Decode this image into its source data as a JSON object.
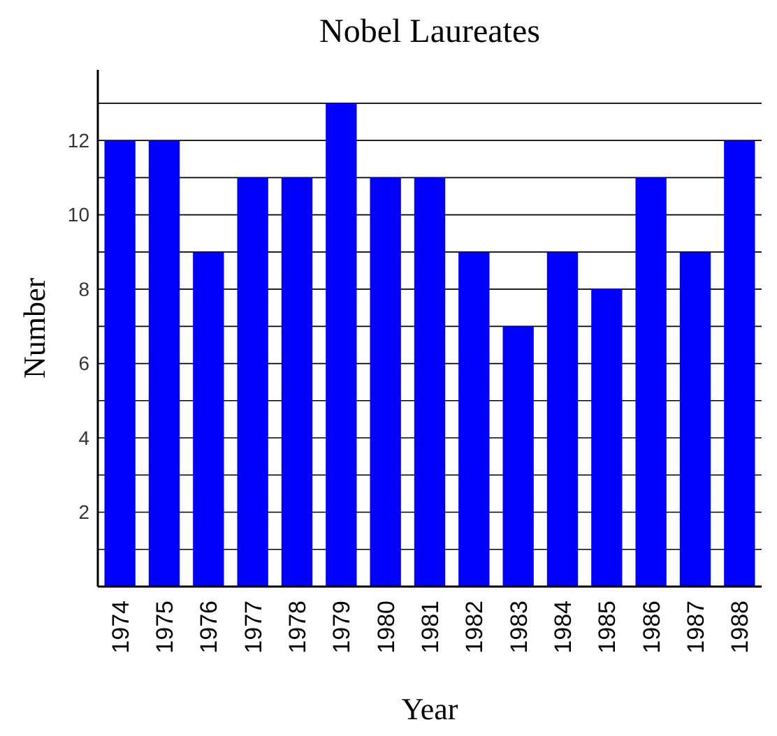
{
  "chart_data": {
    "type": "bar",
    "title": "Nobel Laureates",
    "xlabel": "Year",
    "ylabel": "Number",
    "categories": [
      "1974",
      "1975",
      "1976",
      "1977",
      "1978",
      "1979",
      "1980",
      "1981",
      "1982",
      "1983",
      "1984",
      "1985",
      "1986",
      "1987",
      "1988"
    ],
    "values": [
      12,
      12,
      9,
      11,
      11,
      13,
      11,
      11,
      9,
      7,
      9,
      8,
      11,
      9,
      12
    ],
    "color": "#0000ff",
    "ylim": [
      0,
      13.9
    ],
    "yticks": [
      {
        "value": 1,
        "label": null
      },
      2,
      {
        "value": 3,
        "label": null
      },
      4,
      {
        "value": 5,
        "label": null
      },
      6,
      {
        "value": 7,
        "label": null
      },
      8,
      {
        "value": 9,
        "label": null
      },
      10,
      {
        "value": 11,
        "label": null
      },
      12,
      {
        "value": 13,
        "label": null
      }
    ],
    "grid": true
  }
}
